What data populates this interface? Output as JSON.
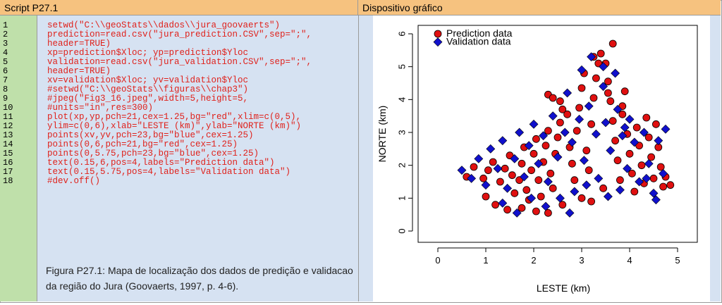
{
  "headers": {
    "script": "Script P27.1",
    "device": "Dispositivo gráfico"
  },
  "code_lines": [
    "setwd(\"C:\\\\geoStats\\\\dados\\\\jura_goovaerts\")",
    "prediction=read.csv(\"jura_prediction.CSV\",sep=\";\",",
    "header=TRUE)",
    "xp=prediction$Xloc; yp=prediction$Yloc",
    "validation=read.csv(\"jura_validation.CSV\",sep=\";\",",
    "header=TRUE)",
    "xv=validation$Xloc; yv=validation$Yloc",
    "#setwd(\"C:\\\\geoStats\\\\figuras\\\\chap3\")",
    "#jpeg(\"Fig3_16.jpeg\",width=5,height=5,",
    "#units=\"in\",res=300)",
    "plot(xp,yp,pch=21,cex=1.25,bg=\"red\",xlim=c(0,5),",
    "ylim=c(0,6),xlab=\"LESTE (km)\",ylab=\"NORTE (km)\")",
    "points(xv,yv,pch=23,bg=\"blue\",cex=1.25)",
    "points(0,6,pch=21,bg=\"red\",cex=1.25)",
    "points(0,5.75,pch=23,bg=\"blue\",cex=1.25)",
    "text(0.15,6,pos=4,labels=\"Prediction data\")",
    "text(0.15,5.75,pos=4,labels=\"Validation data\")",
    "#dev.off()"
  ],
  "line_numbers": [
    "1",
    "2",
    "3",
    "4",
    "5",
    "6",
    "7",
    "8",
    "9",
    "10",
    "11",
    "12",
    "13",
    "14",
    "15",
    "16",
    "17",
    "18"
  ],
  "caption": "Figura P27.1: Mapa de localização dos dados de predição e validacao da região do Jura (Goovaerts, 1997, p. 4-6).",
  "colors": {
    "header": "#f6c27f",
    "gutter": "#bfe0aa",
    "panel": "#d6e2f2",
    "code": "#e0211b",
    "prediction": "#e01010",
    "validation": "#1010cc"
  },
  "chart_data": {
    "type": "scatter",
    "xlabel": "LESTE (km)",
    "ylabel": "NORTE (km)",
    "xlim": [
      0,
      5
    ],
    "ylim": [
      0,
      6
    ],
    "xticks": [
      "0",
      "1",
      "2",
      "3",
      "4",
      "5"
    ],
    "yticks": [
      "0",
      "1",
      "2",
      "3",
      "4",
      "5",
      "6"
    ],
    "legend": [
      "Prediction data",
      "Validation data"
    ],
    "legend_position": "top-left",
    "series": [
      {
        "name": "Prediction data",
        "marker": "circle",
        "points": [
          [
            0.6,
            1.65
          ],
          [
            0.75,
            1.95
          ],
          [
            0.95,
            1.6
          ],
          [
            1.05,
            1.85
          ],
          [
            1.15,
            2.1
          ],
          [
            1.3,
            1.5
          ],
          [
            1.4,
            1.9
          ],
          [
            1.5,
            2.3
          ],
          [
            1.55,
            1.7
          ],
          [
            1.6,
            1.15
          ],
          [
            1.7,
            1.55
          ],
          [
            1.75,
            2.05
          ],
          [
            1.8,
            2.55
          ],
          [
            1.85,
            1.25
          ],
          [
            1.9,
            0.95
          ],
          [
            1.95,
            1.85
          ],
          [
            2.0,
            2.35
          ],
          [
            2.05,
            2.8
          ],
          [
            2.1,
            1.55
          ],
          [
            2.15,
            1.05
          ],
          [
            2.2,
            2.1
          ],
          [
            2.25,
            2.6
          ],
          [
            2.3,
            3.05
          ],
          [
            2.35,
            1.75
          ],
          [
            2.4,
            1.3
          ],
          [
            2.45,
            2.35
          ],
          [
            2.5,
            2.85
          ],
          [
            2.55,
            3.3
          ],
          [
            2.6,
            3.7
          ],
          [
            2.3,
            4.15
          ],
          [
            2.4,
            4.05
          ],
          [
            2.55,
            3.95
          ],
          [
            2.7,
            3.55
          ],
          [
            2.75,
            2.55
          ],
          [
            2.8,
            2.05
          ],
          [
            2.85,
            1.55
          ],
          [
            2.9,
            3.05
          ],
          [
            2.95,
            3.75
          ],
          [
            3.0,
            4.35
          ],
          [
            3.05,
            4.8
          ],
          [
            3.1,
            2.45
          ],
          [
            3.15,
            1.85
          ],
          [
            3.2,
            3.25
          ],
          [
            3.25,
            4.05
          ],
          [
            3.3,
            4.65
          ],
          [
            3.35,
            5.1
          ],
          [
            3.4,
            5.4
          ],
          [
            3.5,
            5.1
          ],
          [
            3.55,
            4.55
          ],
          [
            3.6,
            3.95
          ],
          [
            3.65,
            3.35
          ],
          [
            3.7,
            2.75
          ],
          [
            3.75,
            2.15
          ],
          [
            3.8,
            1.55
          ],
          [
            3.85,
            3.55
          ],
          [
            3.9,
            4.25
          ],
          [
            3.95,
            2.95
          ],
          [
            4.0,
            2.35
          ],
          [
            4.05,
            1.75
          ],
          [
            4.1,
            1.2
          ],
          [
            4.15,
            3.15
          ],
          [
            4.2,
            2.6
          ],
          [
            4.25,
            2.0
          ],
          [
            4.3,
            1.45
          ],
          [
            4.35,
            3.45
          ],
          [
            4.4,
            2.85
          ],
          [
            4.45,
            2.25
          ],
          [
            4.5,
            1.6
          ],
          [
            4.55,
            3.25
          ],
          [
            4.6,
            2.55
          ],
          [
            4.65,
            1.95
          ],
          [
            4.7,
            1.35
          ],
          [
            4.75,
            1.65
          ],
          [
            4.85,
            1.4
          ],
          [
            1.0,
            1.05
          ],
          [
            1.2,
            0.8
          ],
          [
            1.45,
            0.65
          ],
          [
            1.75,
            0.7
          ],
          [
            2.05,
            0.6
          ],
          [
            2.3,
            0.55
          ],
          [
            2.6,
            0.8
          ],
          [
            3.0,
            1.0
          ],
          [
            3.2,
            0.9
          ],
          [
            3.45,
            1.3
          ],
          [
            3.65,
            5.7
          ],
          [
            3.25,
            5.3
          ],
          [
            3.55,
            4.2
          ],
          [
            3.85,
            3.8
          ]
        ]
      },
      {
        "name": "Validation data",
        "marker": "diamond",
        "points": [
          [
            0.5,
            1.85
          ],
          [
            0.7,
            1.6
          ],
          [
            0.85,
            2.2
          ],
          [
            1.0,
            1.4
          ],
          [
            1.1,
            2.5
          ],
          [
            1.25,
            1.9
          ],
          [
            1.35,
            2.75
          ],
          [
            1.45,
            1.3
          ],
          [
            1.6,
            2.2
          ],
          [
            1.7,
            3.0
          ],
          [
            1.8,
            1.65
          ],
          [
            1.9,
            2.6
          ],
          [
            2.0,
            3.25
          ],
          [
            2.1,
            2.05
          ],
          [
            2.2,
            2.9
          ],
          [
            2.3,
            1.5
          ],
          [
            2.4,
            3.5
          ],
          [
            2.5,
            2.25
          ],
          [
            2.55,
            1.0
          ],
          [
            2.65,
            3.0
          ],
          [
            2.7,
            4.2
          ],
          [
            2.8,
            2.7
          ],
          [
            2.85,
            1.2
          ],
          [
            2.95,
            3.4
          ],
          [
            3.0,
            4.9
          ],
          [
            3.05,
            2.15
          ],
          [
            3.15,
            3.8
          ],
          [
            3.2,
            5.3
          ],
          [
            3.3,
            2.95
          ],
          [
            3.35,
            1.6
          ],
          [
            3.45,
            4.4
          ],
          [
            3.5,
            3.3
          ],
          [
            3.6,
            2.45
          ],
          [
            3.7,
            4.8
          ],
          [
            3.75,
            3.7
          ],
          [
            3.85,
            2.9
          ],
          [
            3.95,
            1.9
          ],
          [
            4.0,
            3.4
          ],
          [
            4.1,
            2.7
          ],
          [
            4.2,
            1.5
          ],
          [
            4.3,
            3.0
          ],
          [
            4.4,
            2.05
          ],
          [
            4.5,
            1.15
          ],
          [
            4.6,
            2.75
          ],
          [
            4.7,
            1.75
          ],
          [
            4.75,
            3.1
          ],
          [
            1.35,
            0.85
          ],
          [
            1.65,
            0.55
          ],
          [
            1.95,
            1.0
          ],
          [
            2.25,
            0.75
          ],
          [
            2.75,
            0.55
          ],
          [
            3.1,
            1.4
          ],
          [
            3.55,
            1.05
          ],
          [
            3.8,
            1.25
          ],
          [
            4.35,
            1.6
          ],
          [
            4.55,
            0.95
          ],
          [
            3.45,
            5.0
          ],
          [
            3.9,
            3.15
          ]
        ]
      }
    ]
  }
}
